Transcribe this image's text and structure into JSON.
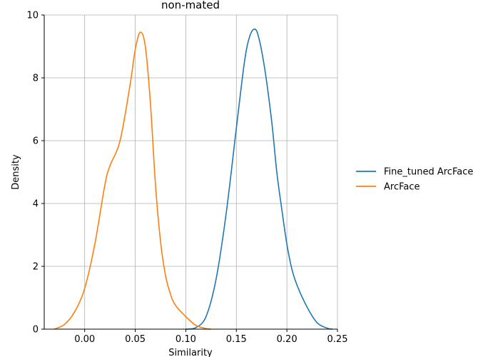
{
  "chart_data": {
    "type": "line",
    "title": "non-mated",
    "xlabel": "Similarity",
    "ylabel": "Density",
    "xlim": [
      -0.04,
      0.25
    ],
    "ylim": [
      0,
      10
    ],
    "x_ticks": [
      "0.00",
      "0.05",
      "0.10",
      "0.15",
      "0.20",
      "0.25"
    ],
    "x_tick_values": [
      0.0,
      0.05,
      0.1,
      0.15,
      0.2,
      0.25
    ],
    "y_ticks": [
      "0",
      "2",
      "4",
      "6",
      "8",
      "10"
    ],
    "y_tick_values": [
      0,
      2,
      4,
      6,
      8,
      10
    ],
    "grid": true,
    "legend_position": "right",
    "series": [
      {
        "name": "Fine_tuned ArcFace",
        "color": "#1f77b4",
        "points": [
          [
            0.1,
            0.0
          ],
          [
            0.11,
            0.05
          ],
          [
            0.12,
            0.4
          ],
          [
            0.13,
            1.6
          ],
          [
            0.14,
            3.7
          ],
          [
            0.15,
            6.4
          ],
          [
            0.158,
            8.5
          ],
          [
            0.163,
            9.3
          ],
          [
            0.168,
            9.55
          ],
          [
            0.172,
            9.3
          ],
          [
            0.178,
            8.3
          ],
          [
            0.185,
            6.6
          ],
          [
            0.19,
            5.0
          ],
          [
            0.195,
            3.8
          ],
          [
            0.2,
            2.7
          ],
          [
            0.205,
            1.9
          ],
          [
            0.21,
            1.4
          ],
          [
            0.22,
            0.7
          ],
          [
            0.23,
            0.2
          ],
          [
            0.24,
            0.03
          ],
          [
            0.245,
            0.0
          ]
        ]
      },
      {
        "name": "ArcFace",
        "color": "#ff7f0e",
        "points": [
          [
            -0.03,
            0.0
          ],
          [
            -0.02,
            0.15
          ],
          [
            -0.01,
            0.55
          ],
          [
            0.0,
            1.3
          ],
          [
            0.01,
            2.7
          ],
          [
            0.02,
            4.6
          ],
          [
            0.025,
            5.2
          ],
          [
            0.035,
            6.0
          ],
          [
            0.045,
            7.8
          ],
          [
            0.05,
            8.9
          ],
          [
            0.055,
            9.45
          ],
          [
            0.06,
            9.0
          ],
          [
            0.065,
            7.2
          ],
          [
            0.07,
            4.6
          ],
          [
            0.075,
            2.8
          ],
          [
            0.08,
            1.7
          ],
          [
            0.085,
            1.1
          ],
          [
            0.09,
            0.75
          ],
          [
            0.1,
            0.4
          ],
          [
            0.11,
            0.12
          ],
          [
            0.12,
            0.02
          ],
          [
            0.125,
            0.0
          ]
        ]
      }
    ]
  }
}
